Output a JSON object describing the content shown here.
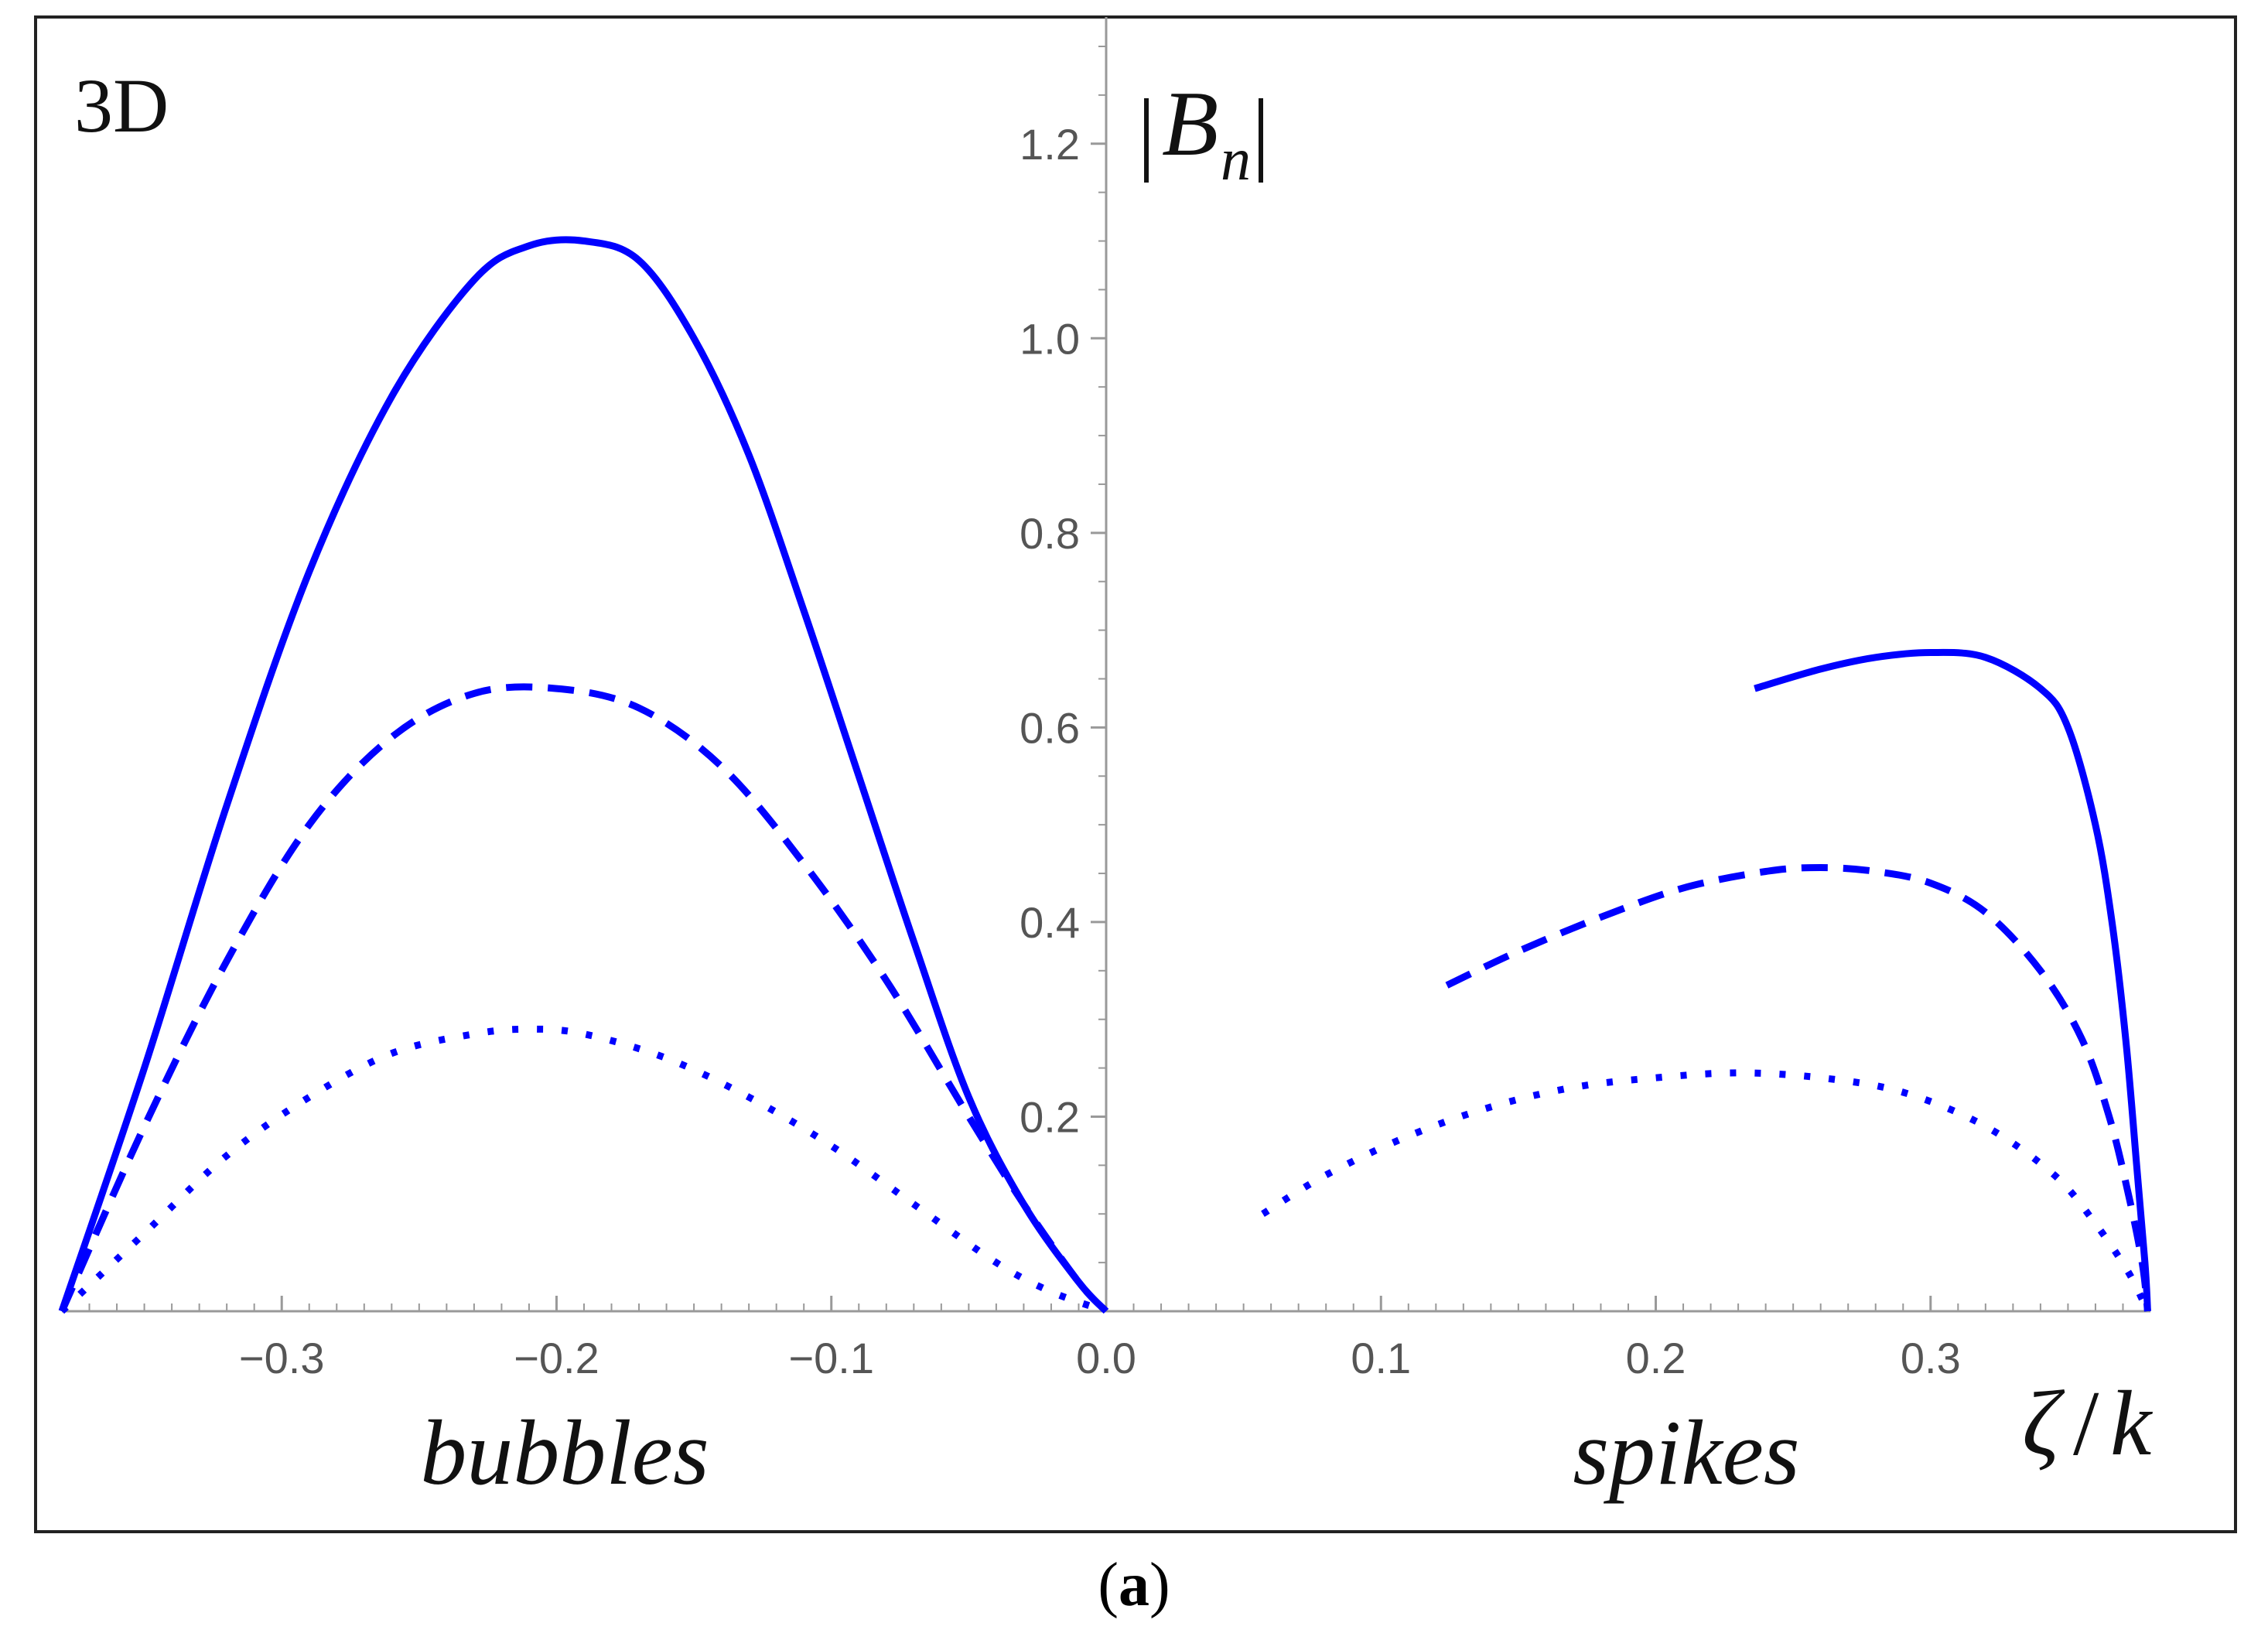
{
  "chart_data": {
    "type": "line",
    "corner_label": "3D",
    "ylabel": "|B_n|",
    "ylabel_base": "B",
    "ylabel_sub": "n",
    "xlabel_zeta": "ζ",
    "xlabel_k": "k",
    "region_labels": {
      "left": "bubbles",
      "right": "spikes"
    },
    "caption": {
      "open": "(",
      "letter": "a",
      "close": ")"
    },
    "xlim": [
      -0.38,
      0.38
    ],
    "ylim": [
      0,
      1.3
    ],
    "x_ticks": [
      -0.3,
      -0.2,
      -0.1,
      0.0,
      0.1,
      0.2,
      0.3
    ],
    "x_tick_labels": [
      "−0.3",
      "−0.2",
      "−0.1",
      "0.0",
      "0.1",
      "0.2",
      "0.3"
    ],
    "y_ticks": [
      0.2,
      0.4,
      0.6,
      0.8,
      1.0,
      1.2
    ],
    "y_tick_labels": [
      "0.2",
      "0.4",
      "0.6",
      "0.8",
      "1.0",
      "1.2"
    ],
    "color": "#0000ff",
    "series": [
      {
        "name": "bubbles-solid",
        "style": "solid",
        "x": [
          -0.38,
          -0.35,
          -0.32,
          -0.29,
          -0.26,
          -0.23,
          -0.21,
          -0.19,
          -0.17,
          -0.15,
          -0.13,
          -0.11,
          -0.09,
          -0.07,
          -0.05,
          -0.03,
          -0.01,
          0.0
        ],
        "y": [
          0.0,
          0.25,
          0.52,
          0.76,
          0.94,
          1.06,
          1.095,
          1.1,
          1.08,
          1.0,
          0.88,
          0.72,
          0.55,
          0.38,
          0.22,
          0.11,
          0.03,
          0.0
        ]
      },
      {
        "name": "bubbles-dashed",
        "style": "dashed",
        "x": [
          -0.38,
          -0.35,
          -0.32,
          -0.29,
          -0.26,
          -0.23,
          -0.2,
          -0.17,
          -0.14,
          -0.11,
          -0.08,
          -0.05,
          -0.03,
          -0.01,
          0.0
        ],
        "y": [
          0.0,
          0.19,
          0.36,
          0.5,
          0.59,
          0.635,
          0.64,
          0.62,
          0.56,
          0.46,
          0.34,
          0.2,
          0.11,
          0.03,
          0.0
        ]
      },
      {
        "name": "bubbles-dotted",
        "style": "dotted",
        "x": [
          -0.38,
          -0.35,
          -0.32,
          -0.29,
          -0.26,
          -0.23,
          -0.21,
          -0.19,
          -0.16,
          -0.13,
          -0.1,
          -0.07,
          -0.04,
          -0.02,
          0.0
        ],
        "y": [
          0.0,
          0.08,
          0.16,
          0.22,
          0.265,
          0.285,
          0.29,
          0.285,
          0.26,
          0.22,
          0.17,
          0.11,
          0.05,
          0.02,
          0.0
        ]
      },
      {
        "name": "spikes-solid",
        "style": "solid",
        "x": [
          0.236,
          0.26,
          0.28,
          0.3,
          0.32,
          0.34,
          0.35,
          0.36,
          0.366,
          0.371,
          0.375,
          0.378,
          0.379
        ],
        "y": [
          0.64,
          0.66,
          0.672,
          0.677,
          0.672,
          0.64,
          0.6,
          0.5,
          0.4,
          0.28,
          0.15,
          0.05,
          0.0
        ]
      },
      {
        "name": "spikes-dashed",
        "style": "dashed",
        "x": [
          0.124,
          0.15,
          0.18,
          0.21,
          0.24,
          0.26,
          0.28,
          0.3,
          0.32,
          0.34,
          0.355,
          0.365,
          0.372,
          0.377,
          0.379
        ],
        "y": [
          0.335,
          0.37,
          0.405,
          0.435,
          0.452,
          0.456,
          0.452,
          0.44,
          0.41,
          0.35,
          0.28,
          0.2,
          0.12,
          0.05,
          0.0
        ]
      },
      {
        "name": "spikes-dotted",
        "style": "dotted",
        "x": [
          0.057,
          0.08,
          0.11,
          0.14,
          0.17,
          0.2,
          0.23,
          0.26,
          0.29,
          0.32,
          0.345,
          0.36,
          0.372,
          0.379
        ],
        "y": [
          0.1,
          0.14,
          0.18,
          0.21,
          0.23,
          0.24,
          0.245,
          0.24,
          0.225,
          0.19,
          0.14,
          0.09,
          0.04,
          0.0
        ]
      }
    ]
  }
}
